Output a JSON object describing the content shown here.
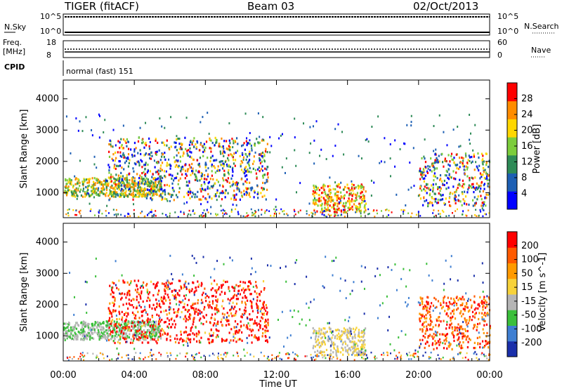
{
  "header": {
    "station": "TIGER (fitACF)",
    "beam": "Beam 03",
    "date": "02/Oct/2013"
  },
  "strip": {
    "nsky_label": "N.Sky",
    "nsky_ticks": [
      "10^5",
      "10^0"
    ],
    "nsearch_label": "N.Search",
    "nsearch_ticks": [
      "10^5",
      "10^0"
    ],
    "freq_label": "Freq.",
    "freq_unit": "[MHz]",
    "freq_ticks": [
      "18",
      "8"
    ],
    "nave_label": "Nave",
    "nave_ticks": [
      "60",
      "0"
    ],
    "cpid_label": "CPID",
    "cpid_value": "normal (fast) 151"
  },
  "chart_data": [
    {
      "type": "heatmap",
      "panel": "power",
      "ylabel": "Slant Range [km]",
      "ylim": [
        200,
        4600
      ],
      "yticks": [
        "1000",
        "2000",
        "3000",
        "4000"
      ],
      "colorbar_label": "Power [dB]",
      "colorbar_ticks": [
        "28",
        "24",
        "20",
        "16",
        "12",
        "8",
        "4"
      ],
      "colors": [
        "#0000ff",
        "#1d5fb4",
        "#2e8b57",
        "#7ccd3c",
        "#ffd700",
        "#ff8c00",
        "#ff0000"
      ],
      "echo_regions": [
        {
          "t": [
            0.0,
            5.5
          ],
          "range": [
            900,
            1500
          ]
        },
        {
          "t": [
            2.5,
            11.5
          ],
          "range": [
            800,
            2800
          ]
        },
        {
          "t": [
            14.0,
            17.0
          ],
          "range": [
            400,
            1300
          ]
        },
        {
          "t": [
            20.0,
            24.0
          ],
          "range": [
            600,
            2300
          ]
        }
      ]
    },
    {
      "type": "heatmap",
      "panel": "velocity",
      "ylabel": "Slant Range [km]",
      "ylim": [
        200,
        4600
      ],
      "yticks": [
        "1000",
        "2000",
        "3000",
        "4000"
      ],
      "colorbar_label": "Velocity [m s^-1]",
      "colorbar_ticks": [
        "200",
        "100",
        "50",
        "15",
        "-15",
        "-50",
        "-100",
        "-200"
      ],
      "colors": [
        "#1a2faa",
        "#3f7fd2",
        "#3bbf3b",
        "#b5b5b5",
        "#f7d23a",
        "#ff9a00",
        "#ff5a00",
        "#ff0000"
      ],
      "xlabel": "Time UT",
      "xticks": [
        "00:00",
        "04:00",
        "08:00",
        "12:00",
        "16:00",
        "20:00",
        "00:00"
      ]
    }
  ]
}
